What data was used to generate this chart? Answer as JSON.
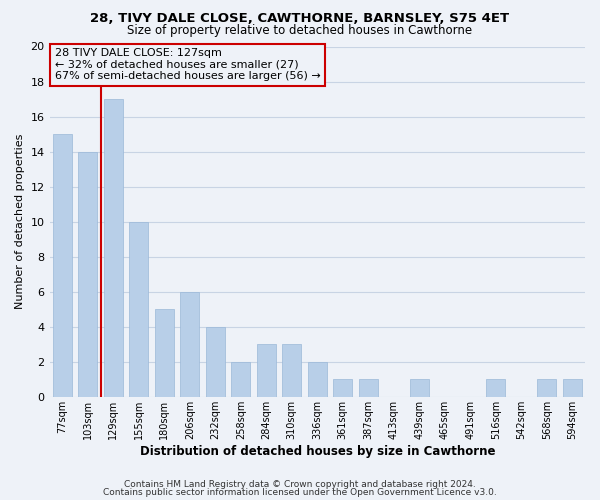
{
  "title": "28, TIVY DALE CLOSE, CAWTHORNE, BARNSLEY, S75 4ET",
  "subtitle": "Size of property relative to detached houses in Cawthorne",
  "xlabel": "Distribution of detached houses by size in Cawthorne",
  "ylabel": "Number of detached properties",
  "bin_labels": [
    "77sqm",
    "103sqm",
    "129sqm",
    "155sqm",
    "180sqm",
    "206sqm",
    "232sqm",
    "258sqm",
    "284sqm",
    "310sqm",
    "336sqm",
    "361sqm",
    "387sqm",
    "413sqm",
    "439sqm",
    "465sqm",
    "491sqm",
    "516sqm",
    "542sqm",
    "568sqm",
    "594sqm"
  ],
  "bar_heights": [
    15,
    14,
    17,
    10,
    5,
    6,
    4,
    2,
    3,
    3,
    2,
    1,
    1,
    0,
    1,
    0,
    0,
    1,
    0,
    1,
    1
  ],
  "highlight_index": 2,
  "bar_color": "#b8cfe8",
  "bar_edge_color": "#9ab8d8",
  "highlight_bar_edge_color": "#cc0000",
  "highlight_line_color": "#cc0000",
  "annotation_text_line1": "28 TIVY DALE CLOSE: 127sqm",
  "annotation_text_line2": "← 32% of detached houses are smaller (27)",
  "annotation_text_line3": "67% of semi-detached houses are larger (56) →",
  "annotation_box_edge_color": "#cc0000",
  "ylim": [
    0,
    20
  ],
  "yticks": [
    0,
    2,
    4,
    6,
    8,
    10,
    12,
    14,
    16,
    18,
    20
  ],
  "grid_color": "#c8d4e4",
  "footer_line1": "Contains HM Land Registry data © Crown copyright and database right 2024.",
  "footer_line2": "Contains public sector information licensed under the Open Government Licence v3.0.",
  "background_color": "#eef2f8",
  "title_fontsize": 9.5,
  "subtitle_fontsize": 8.5,
  "bar_width": 0.75
}
